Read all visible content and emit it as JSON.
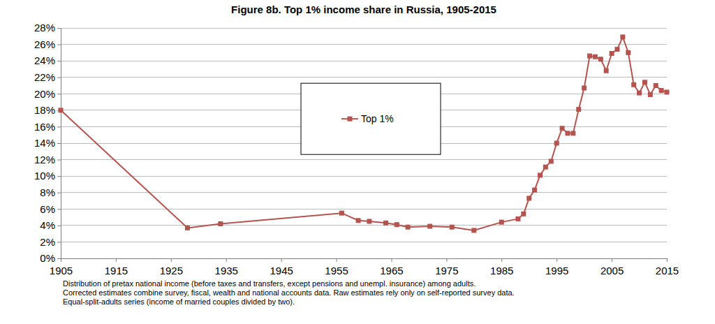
{
  "chart_data": {
    "type": "line",
    "title": "Figure 8b. Top 1% income share in Russia, 1905-2015",
    "annotations": [
      "Distribution of pretax national income (before taxes and transfers, except pensions and unempl. insurance) among adults.",
      "Corrected estimates combine survey, fiscal, wealth and national accounts data. Raw estimates rely only on self-reported survey data.",
      "Equal-split-adults series (income of married couples divided by two)."
    ],
    "x": [
      1905,
      1928,
      1934,
      1956,
      1959,
      1961,
      1964,
      1966,
      1968,
      1972,
      1976,
      1980,
      1985,
      1988,
      1989,
      1990,
      1991,
      1992,
      1993,
      1994,
      1995,
      1996,
      1997,
      1998,
      1999,
      2000,
      2001,
      2002,
      2003,
      2004,
      2005,
      2006,
      2007,
      2008,
      2009,
      2010,
      2011,
      2012,
      2013,
      2014,
      2015
    ],
    "series": [
      {
        "name": "Top 1%",
        "color": "#b5544f",
        "marker": "square",
        "line_style": "solid",
        "values": [
          18.0,
          3.7,
          4.2,
          5.5,
          4.6,
          4.5,
          4.3,
          4.1,
          3.8,
          3.9,
          3.8,
          3.4,
          4.4,
          4.8,
          5.4,
          7.3,
          8.3,
          10.1,
          11.1,
          11.8,
          14.0,
          15.8,
          15.2,
          15.2,
          18.1,
          20.7,
          24.6,
          24.5,
          24.2,
          22.8,
          24.9,
          25.4,
          26.9,
          25.0,
          21.1,
          20.1,
          21.4,
          19.9,
          21.0,
          20.4,
          20.2
        ]
      }
    ],
    "xlim": [
      1905,
      2015
    ],
    "xticks": [
      1905,
      1915,
      1925,
      1935,
      1945,
      1955,
      1965,
      1975,
      1985,
      1995,
      2005,
      2015
    ],
    "ylim": [
      0,
      28
    ],
    "yticks": [
      {
        "value": 0,
        "label": "0%"
      },
      {
        "value": 2,
        "label": "2%"
      },
      {
        "value": 4,
        "label": "4%"
      },
      {
        "value": 6,
        "label": "6%"
      },
      {
        "value": 8,
        "label": "8%"
      },
      {
        "value": 10,
        "label": "10%"
      },
      {
        "value": 12,
        "label": "12%"
      },
      {
        "value": 14,
        "label": "14%"
      },
      {
        "value": 16,
        "label": "16%"
      },
      {
        "value": 18,
        "label": "18%"
      },
      {
        "value": 20,
        "label": "20%"
      },
      {
        "value": 22,
        "label": "22%"
      },
      {
        "value": 24,
        "label": "24%"
      },
      {
        "value": 26,
        "label": "26%"
      },
      {
        "value": 28,
        "label": "28%"
      }
    ],
    "grid": true,
    "legend": "center"
  }
}
